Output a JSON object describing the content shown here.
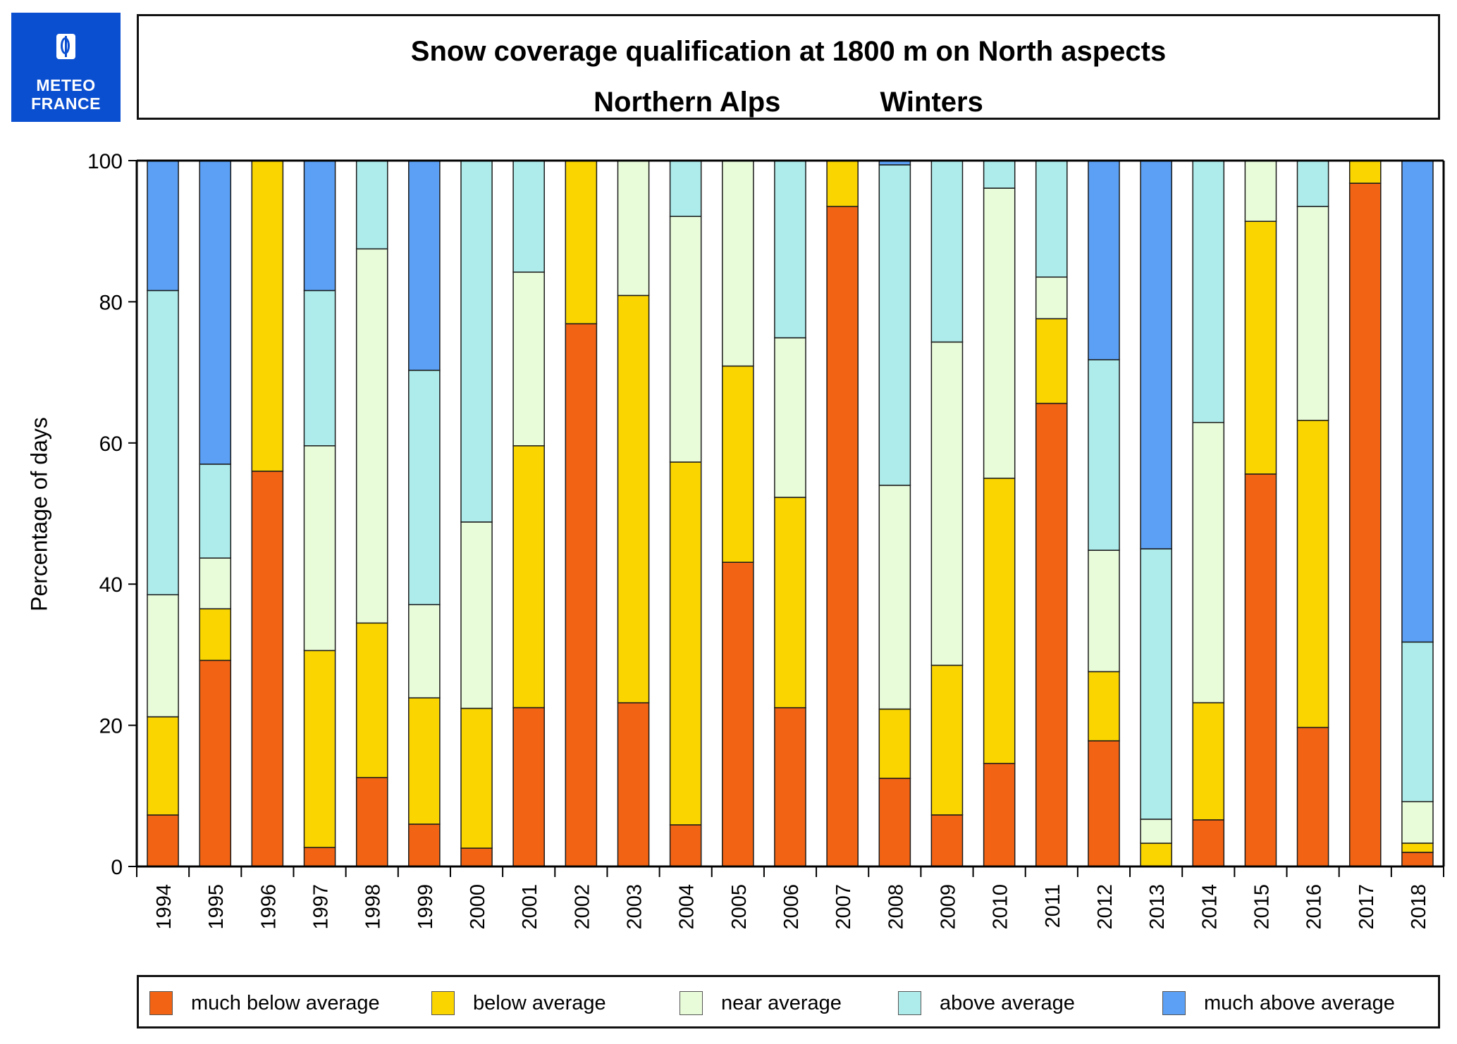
{
  "logo": {
    "line1": "METEO",
    "line2": "FRANCE"
  },
  "header": {
    "title": "Snow coverage qualification at 1800 m on North aspects",
    "region": "Northern Alps",
    "season": "Winters"
  },
  "chart_data": {
    "type": "bar",
    "stacked": true,
    "title": "Snow coverage qualification at 1800 m on North aspects",
    "subtitle": "Northern Alps    Winters",
    "xlabel": "",
    "ylabel": "Percentage of days",
    "ylim": [
      0,
      100
    ],
    "yticks": [
      0,
      20,
      40,
      60,
      80,
      100
    ],
    "grid": false,
    "legend_position": "bottom",
    "categories": [
      "1994",
      "1995",
      "1996",
      "1997",
      "1998",
      "1999",
      "2000",
      "2001",
      "2002",
      "2003",
      "2004",
      "2005",
      "2006",
      "2007",
      "2008",
      "2009",
      "2010",
      "2011",
      "2012",
      "2013",
      "2014",
      "2015",
      "2016",
      "2017",
      "2018"
    ],
    "series": [
      {
        "name": "much below average",
        "color": "#f26414",
        "values": [
          7.3,
          29.2,
          56.0,
          2.7,
          12.6,
          6.0,
          2.6,
          22.5,
          76.9,
          23.2,
          5.9,
          43.1,
          22.5,
          93.5,
          12.5,
          7.3,
          14.6,
          65.6,
          17.8,
          0.0,
          6.6,
          55.6,
          19.7,
          96.8,
          2.0
        ]
      },
      {
        "name": "below average",
        "color": "#fad500",
        "values": [
          13.9,
          7.3,
          44.0,
          27.9,
          21.9,
          17.9,
          19.8,
          37.1,
          23.1,
          57.7,
          51.4,
          27.8,
          29.8,
          6.5,
          9.8,
          21.2,
          40.4,
          12.0,
          9.8,
          3.3,
          16.6,
          35.8,
          43.5,
          3.2,
          1.3
        ]
      },
      {
        "name": "near average",
        "color": "#e9fcda",
        "values": [
          17.3,
          7.2,
          0.0,
          29.0,
          53.0,
          13.2,
          26.4,
          24.6,
          0.0,
          19.1,
          34.8,
          29.1,
          22.6,
          0.0,
          31.7,
          45.8,
          41.1,
          5.9,
          17.2,
          3.4,
          39.7,
          8.6,
          30.3,
          0.0,
          5.9
        ]
      },
      {
        "name": "above average",
        "color": "#aeecec",
        "values": [
          43.1,
          13.3,
          0.0,
          22.0,
          12.5,
          33.2,
          51.2,
          15.8,
          0.0,
          0.0,
          7.9,
          0.0,
          25.1,
          0.0,
          45.4,
          25.7,
          3.9,
          16.5,
          27.0,
          38.3,
          37.1,
          0.0,
          6.5,
          0.0,
          22.6
        ]
      },
      {
        "name": "much above average",
        "color": "#5ba0f5",
        "values": [
          18.4,
          43.0,
          0.0,
          18.4,
          0.0,
          29.7,
          0.0,
          0.0,
          0.0,
          0.0,
          0.0,
          0.0,
          0.0,
          0.0,
          0.6,
          0.0,
          0.0,
          0.0,
          28.2,
          55.0,
          0.0,
          0.0,
          0.0,
          0.0,
          68.2
        ]
      }
    ]
  }
}
